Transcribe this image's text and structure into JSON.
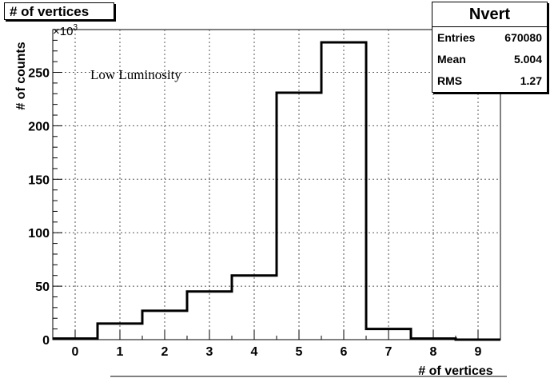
{
  "title": "# of vertices",
  "stats": {
    "name": "Nvert",
    "rows": [
      {
        "label": "Entries",
        "value": "670080"
      },
      {
        "label": "Mean",
        "value": "5.004"
      },
      {
        "label": "RMS",
        "value": "1.27"
      }
    ]
  },
  "chart_data": {
    "type": "bar",
    "histogram": true,
    "xlabel": "# of vertices",
    "ylabel": "# of counts",
    "y_multiplier": "×10^3",
    "annotation": "Low Luminosity",
    "categories": [
      "0",
      "1",
      "2",
      "3",
      "4",
      "5",
      "6",
      "7",
      "8",
      "9"
    ],
    "values": [
      1,
      15,
      27,
      45,
      60,
      231,
      278,
      10,
      1,
      0
    ],
    "ylim": [
      0,
      290
    ],
    "xlim": [
      -0.5,
      9.5
    ],
    "yticks": [
      0,
      50,
      100,
      150,
      200,
      250
    ],
    "grid": true
  }
}
